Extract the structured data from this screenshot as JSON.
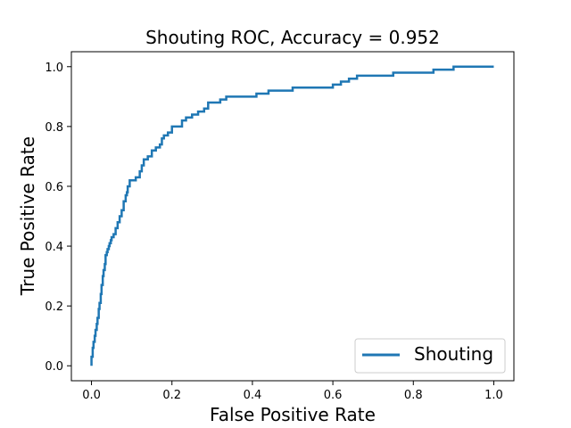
{
  "chart_data": {
    "type": "line",
    "title": "Shouting ROC, Accuracy = 0.952",
    "xlabel": "False Positive Rate",
    "ylabel": "True Positive Rate",
    "xlim": [
      -0.05,
      1.05
    ],
    "ylim": [
      -0.05,
      1.05
    ],
    "xticks": [
      0.0,
      0.2,
      0.4,
      0.6,
      0.8,
      1.0
    ],
    "yticks": [
      0.0,
      0.2,
      0.4,
      0.6,
      0.8,
      1.0
    ],
    "xtick_labels": [
      "0.0",
      "0.2",
      "0.4",
      "0.6",
      "0.8",
      "1.0"
    ],
    "ytick_labels": [
      "0.0",
      "0.2",
      "0.4",
      "0.6",
      "0.8",
      "1.0"
    ],
    "grid": false,
    "legend_position": "lower-right",
    "series": [
      {
        "name": "Shouting",
        "color": "#1f77b4",
        "x": [
          0.0,
          0.0,
          0.003,
          0.005,
          0.008,
          0.01,
          0.013,
          0.015,
          0.018,
          0.02,
          0.023,
          0.025,
          0.028,
          0.03,
          0.033,
          0.035,
          0.038,
          0.04,
          0.043,
          0.045,
          0.048,
          0.05,
          0.055,
          0.06,
          0.065,
          0.07,
          0.075,
          0.08,
          0.085,
          0.088,
          0.09,
          0.095,
          0.1,
          0.11,
          0.12,
          0.125,
          0.13,
          0.14,
          0.15,
          0.16,
          0.17,
          0.175,
          0.18,
          0.19,
          0.2,
          0.215,
          0.225,
          0.235,
          0.25,
          0.265,
          0.28,
          0.29,
          0.3,
          0.32,
          0.335,
          0.35,
          0.38,
          0.41,
          0.44,
          0.47,
          0.5,
          0.53,
          0.56,
          0.6,
          0.62,
          0.64,
          0.65,
          0.66,
          0.68,
          0.7,
          0.75,
          0.8,
          0.85,
          0.88,
          0.9,
          0.95,
          1.0
        ],
        "y": [
          0.0,
          0.03,
          0.06,
          0.08,
          0.1,
          0.12,
          0.14,
          0.16,
          0.19,
          0.21,
          0.24,
          0.27,
          0.3,
          0.32,
          0.34,
          0.37,
          0.38,
          0.39,
          0.4,
          0.41,
          0.42,
          0.43,
          0.44,
          0.46,
          0.48,
          0.5,
          0.52,
          0.55,
          0.57,
          0.58,
          0.6,
          0.62,
          0.62,
          0.63,
          0.65,
          0.67,
          0.69,
          0.7,
          0.72,
          0.73,
          0.74,
          0.76,
          0.77,
          0.78,
          0.8,
          0.8,
          0.82,
          0.83,
          0.84,
          0.85,
          0.86,
          0.88,
          0.88,
          0.89,
          0.9,
          0.9,
          0.9,
          0.91,
          0.92,
          0.92,
          0.93,
          0.93,
          0.93,
          0.94,
          0.95,
          0.96,
          0.96,
          0.97,
          0.97,
          0.97,
          0.98,
          0.98,
          0.99,
          0.99,
          1.0,
          1.0,
          1.0
        ]
      }
    ]
  }
}
